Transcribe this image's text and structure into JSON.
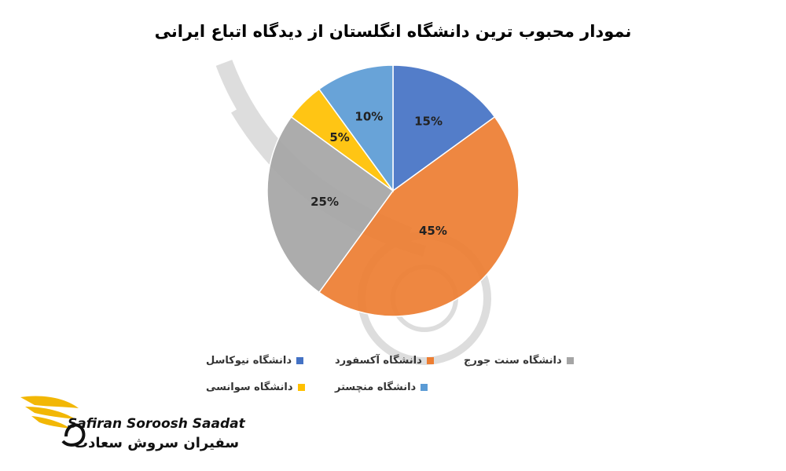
{
  "chart_data": {
    "type": "pie",
    "title": "نمودار محبوب ترین دانشگاه انگلستان از دیدگاه اتباع ایرانی",
    "slices": [
      {
        "name": "دانشگاه نیوکاسل",
        "value": 15,
        "label": "15%",
        "color": "#4472C4"
      },
      {
        "name": "دانشگاه آکسفورد",
        "value": 45,
        "label": "45%",
        "color": "#ED7D31"
      },
      {
        "name": "دانشگاه سنت جورج",
        "value": 25,
        "label": "25%",
        "color": "#A5A5A5"
      },
      {
        "name": "دانشگاه سوانسی",
        "value": 5,
        "label": "5%",
        "color": "#FFC000"
      },
      {
        "name": "دانشگاه منچستر",
        "value": 10,
        "label": "10%",
        "color": "#5B9BD5"
      }
    ],
    "legend_position": "bottom"
  },
  "brand": {
    "name_en": "Safiran Soroosh Saadat",
    "name_fa": "سفیران سروش سعادت",
    "accent_color": "#F2B705"
  }
}
